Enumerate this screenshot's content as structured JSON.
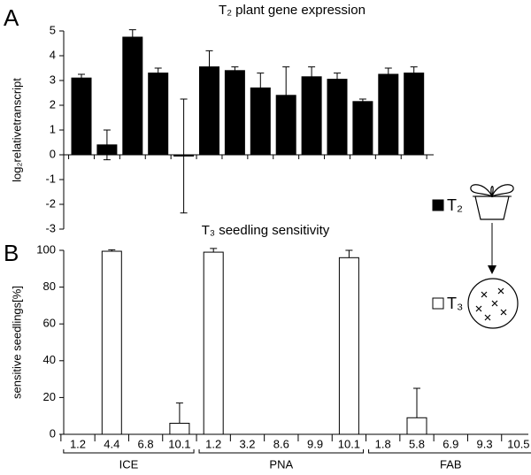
{
  "panel_labels": [
    "A",
    "B"
  ],
  "legend": [
    {
      "label": "T₂",
      "color": "#000000"
    },
    {
      "label": "T₃",
      "color": "#ffffff"
    }
  ],
  "chart_data": [
    {
      "type": "bar",
      "title": "T₂ plant gene expression",
      "ylabel": "log₂relativetranscript",
      "values": [
        3.1,
        0.4,
        4.75,
        3.3,
        -0.05,
        3.55,
        3.4,
        2.7,
        2.4,
        3.15,
        3.05,
        2.15,
        3.25,
        3.3
      ],
      "errors": [
        0.15,
        0.6,
        0.3,
        0.2,
        2.3,
        0.65,
        0.15,
        0.6,
        1.15,
        0.4,
        0.25,
        0.1,
        0.25,
        0.25
      ],
      "error_direction": "both",
      "color": "#000000",
      "ylim": [
        -3,
        5
      ],
      "yticks": [
        -3,
        -2,
        -1,
        0,
        1,
        2,
        3,
        4,
        5
      ]
    },
    {
      "type": "bar",
      "title": "T₃ seedling sensitivity",
      "ylabel": "sensitive seedlings[%]",
      "categories": [
        "1.2",
        "4.4",
        "6.8",
        "10.1",
        "1.2",
        "3.2",
        "8.6",
        "9.9",
        "10.1",
        "1.8",
        "5.8",
        "6.9",
        "9.3",
        "10.5"
      ],
      "groups": [
        {
          "name": "ICE",
          "size": 4
        },
        {
          "name": "PNA",
          "size": 5
        },
        {
          "name": "FAB",
          "size": 5
        }
      ],
      "values": [
        0,
        99.5,
        0,
        6,
        99,
        0,
        0,
        0,
        96,
        0,
        9,
        0,
        0,
        0
      ],
      "errors": [
        0,
        0.8,
        0,
        11,
        2,
        0,
        0,
        0,
        4,
        0,
        16,
        0,
        0,
        0
      ],
      "error_direction": "up",
      "color": "#ffffff",
      "ylim": [
        0,
        100
      ],
      "yticks": [
        0,
        20,
        40,
        60,
        80,
        100
      ]
    }
  ]
}
